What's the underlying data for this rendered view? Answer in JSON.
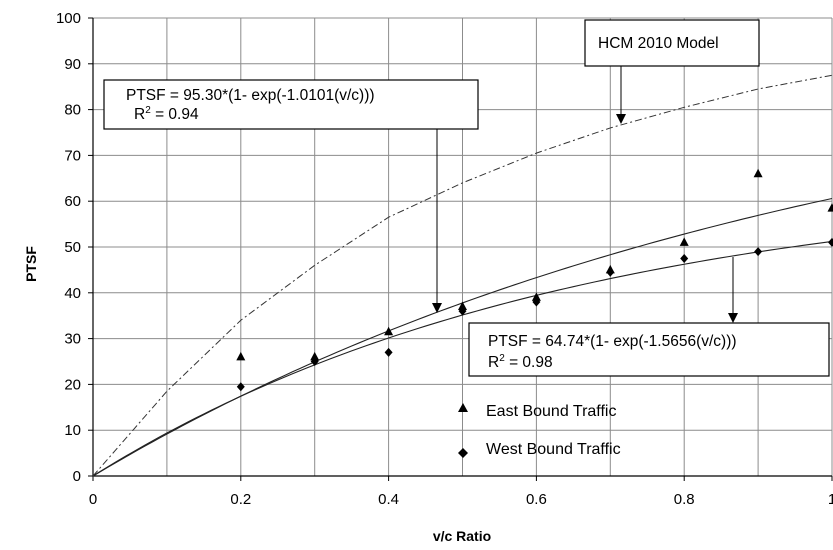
{
  "chart_data": {
    "type": "scatter",
    "xlabel": "v/c Ratio",
    "ylabel": "PTSF",
    "xlim": [
      0,
      1
    ],
    "ylim": [
      0,
      100
    ],
    "x_ticks": [
      "0",
      "0.2",
      "0.4",
      "0.6",
      "0.8",
      "1"
    ],
    "y_ticks": [
      "0",
      "10",
      "20",
      "30",
      "40",
      "50",
      "60",
      "70",
      "80",
      "90",
      "100"
    ],
    "grid": true,
    "series": [
      {
        "name": "East Bound Traffic",
        "marker": "triangle",
        "points": [
          {
            "x": 0.2,
            "y": 26
          },
          {
            "x": 0.3,
            "y": 26
          },
          {
            "x": 0.4,
            "y": 31.5
          },
          {
            "x": 0.5,
            "y": 37
          },
          {
            "x": 0.6,
            "y": 39
          },
          {
            "x": 0.7,
            "y": 45
          },
          {
            "x": 0.8,
            "y": 51
          },
          {
            "x": 0.9,
            "y": 66
          },
          {
            "x": 1.0,
            "y": 58.5
          }
        ]
      },
      {
        "name": "West Bound Traffic",
        "marker": "diamond",
        "points": [
          {
            "x": 0.2,
            "y": 19.5
          },
          {
            "x": 0.3,
            "y": 25
          },
          {
            "x": 0.4,
            "y": 27
          },
          {
            "x": 0.5,
            "y": 36
          },
          {
            "x": 0.6,
            "y": 38
          },
          {
            "x": 0.7,
            "y": 44.5
          },
          {
            "x": 0.8,
            "y": 47.5
          },
          {
            "x": 0.9,
            "y": 49
          },
          {
            "x": 1.0,
            "y": 51
          }
        ]
      }
    ],
    "curves": [
      {
        "model": "east_fit",
        "a": 95.3,
        "b": -1.0101,
        "style": "solid"
      },
      {
        "model": "west_fit",
        "a": 64.74,
        "b": -1.5656,
        "style": "solid"
      },
      {
        "model": "hcm_2010",
        "style": "dashdot"
      }
    ],
    "annotations": {
      "hcm_label": "HCM 2010 Model",
      "east_eq": "PTSF = 95.30*(1- exp(-1.0101(v/c)))",
      "east_r2_prefix": "R",
      "east_r2_sup": "2",
      "east_r2_value": " = 0.94",
      "west_eq": "PTSF = 64.74*(1- exp(-1.5656(v/c)))",
      "west_r2_prefix": "R",
      "west_r2_sup": "2",
      "west_r2_value": " = 0.98"
    },
    "legend": {
      "placement": "bottom-center",
      "entries": [
        "East Bound Traffic",
        "West Bound Traffic"
      ]
    }
  }
}
